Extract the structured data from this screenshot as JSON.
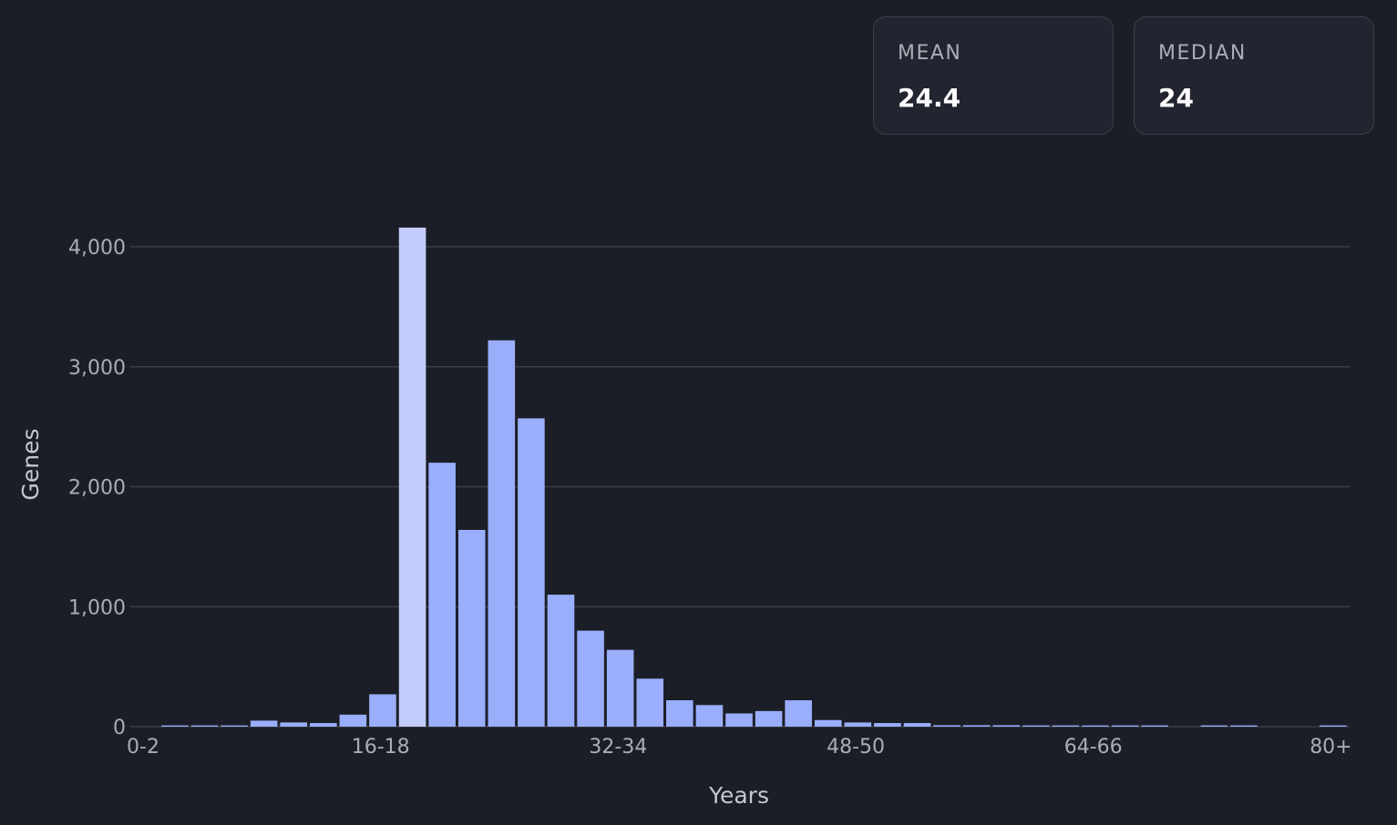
{
  "stats": {
    "mean": {
      "label": "MEAN",
      "value": "24.4"
    },
    "median": {
      "label": "MEDIAN",
      "value": "24"
    }
  },
  "colors": {
    "background": "#1c1e27",
    "bar": "#9aaefc",
    "bar_highlight": "#c2cdfd",
    "grid": "#3a3d47"
  },
  "chart_data": {
    "type": "bar",
    "xlabel": "Years",
    "ylabel": "Genes",
    "ylim": [
      0,
      4000
    ],
    "y_ticks": [
      0,
      1000,
      2000,
      3000,
      4000
    ],
    "y_tick_labels": [
      "0",
      "1,000",
      "2,000",
      "3,000",
      "4,000"
    ],
    "grid": true,
    "x_tick_labels": [
      {
        "label": "0-2",
        "index": 0
      },
      {
        "label": "16-18",
        "index": 8
      },
      {
        "label": "32-34",
        "index": 16
      },
      {
        "label": "48-50",
        "index": 24
      },
      {
        "label": "64-66",
        "index": 32
      },
      {
        "label": "80+",
        "index": 40
      }
    ],
    "highlight_category": "18-20",
    "categories": [
      "0-2",
      "2-4",
      "4-6",
      "6-8",
      "8-10",
      "10-12",
      "12-14",
      "14-16",
      "16-18",
      "18-20",
      "20-22",
      "22-24",
      "24-26",
      "26-28",
      "28-30",
      "30-32",
      "32-34",
      "34-36",
      "36-38",
      "38-40",
      "40-42",
      "42-44",
      "44-46",
      "46-48",
      "48-50",
      "50-52",
      "52-54",
      "54-56",
      "56-58",
      "58-60",
      "60-62",
      "62-64",
      "64-66",
      "66-68",
      "68-70",
      "70-72",
      "72-74",
      "74-76",
      "76-78",
      "78-80",
      "80+"
    ],
    "values": [
      0,
      10,
      10,
      10,
      50,
      35,
      30,
      100,
      270,
      4160,
      2200,
      1640,
      3220,
      2570,
      1100,
      800,
      640,
      400,
      220,
      180,
      110,
      130,
      220,
      55,
      35,
      30,
      30,
      12,
      12,
      12,
      10,
      10,
      10,
      10,
      10,
      0,
      10,
      10,
      0,
      0,
      10
    ]
  }
}
